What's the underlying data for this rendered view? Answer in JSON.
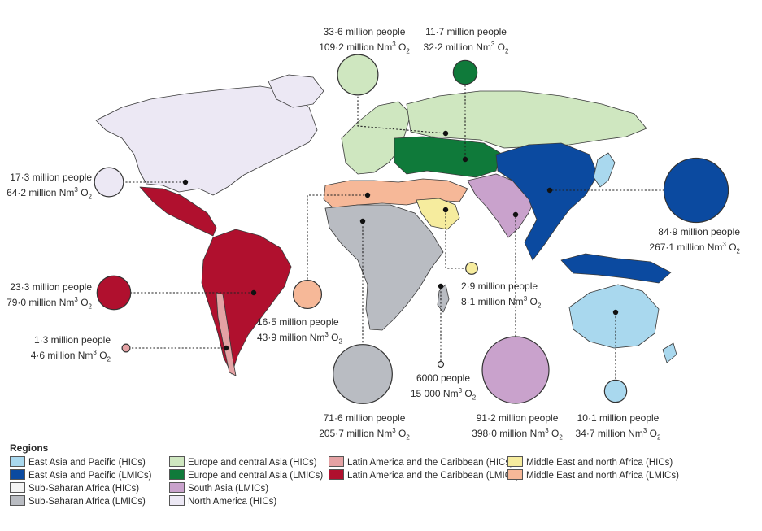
{
  "colors": {
    "eap_hic": "#a9d8ee",
    "eap_lmic": "#0b4aa0",
    "ssa_hic": "#f4f4f4",
    "ssa_lmic": "#b9bcc2",
    "eca_hic": "#cfe7c0",
    "eca_lmic": "#0f7a3a",
    "sa_lmic": "#c9a2cc",
    "na_hic": "#ece8f4",
    "lac_hic": "#e4a2a4",
    "lac_lmic": "#b0102e",
    "mena_hic": "#f6ec9e",
    "mena_lmic": "#f6b898"
  },
  "bubbles": [
    {
      "id": "eca_hic",
      "people": "33·6 million people",
      "oxygen": "109·2 million Nm",
      "unit": "3",
      "o2": "O",
      "sub": "2",
      "people_value": 33.6,
      "oxygen_value": 109.2
    },
    {
      "id": "eca_lmic",
      "people": "11·7 million people",
      "oxygen": "32·2 million Nm",
      "unit": "3",
      "o2": "O",
      "sub": "2",
      "people_value": 11.7,
      "oxygen_value": 32.2
    },
    {
      "id": "na_hic",
      "people": "17·3 million people",
      "oxygen": "64·2 million Nm",
      "unit": "3",
      "o2": "O",
      "sub": "2",
      "people_value": 17.3,
      "oxygen_value": 64.2
    },
    {
      "id": "eap_lmic",
      "people": "84·9 million people",
      "oxygen": "267·1 million Nm",
      "unit": "3",
      "o2": "O",
      "sub": "2",
      "people_value": 84.9,
      "oxygen_value": 267.1
    },
    {
      "id": "lac_lmic",
      "people": "23·3 million people",
      "oxygen": "79·0 million Nm",
      "unit": "3",
      "o2": "O",
      "sub": "2",
      "people_value": 23.3,
      "oxygen_value": 79.0
    },
    {
      "id": "mena_lmic",
      "people": "16·5 million people",
      "oxygen": "43·9 million Nm",
      "unit": "3",
      "o2": "O",
      "sub": "2",
      "people_value": 16.5,
      "oxygen_value": 43.9
    },
    {
      "id": "mena_hic",
      "people": "2·9 million people",
      "oxygen": "8·1 million Nm",
      "unit": "3",
      "o2": "O",
      "sub": "2",
      "people_value": 2.9,
      "oxygen_value": 8.1
    },
    {
      "id": "lac_hic",
      "people": "1·3 million people",
      "oxygen": "4·6 million Nm",
      "unit": "3",
      "o2": "O",
      "sub": "2",
      "people_value": 1.3,
      "oxygen_value": 4.6
    },
    {
      "id": "ssa_hic",
      "people": "6000 people",
      "oxygen": "15 000 Nm",
      "unit": "3",
      "o2": "O",
      "sub": "2",
      "people_value": 0.006,
      "oxygen_value": 0.015
    },
    {
      "id": "ssa_lmic",
      "people": "71·6 million people",
      "oxygen": "205·7 million Nm",
      "unit": "3",
      "o2": "O",
      "sub": "2",
      "people_value": 71.6,
      "oxygen_value": 205.7
    },
    {
      "id": "sa_lmic",
      "people": "91·2 million people",
      "oxygen": "398·0 million Nm",
      "unit": "3",
      "o2": "O",
      "sub": "2",
      "people_value": 91.2,
      "oxygen_value": 398.0
    },
    {
      "id": "eap_hic",
      "people": "10·1 million people",
      "oxygen": "34·7 million Nm",
      "unit": "3",
      "o2": "O",
      "sub": "2",
      "people_value": 10.1,
      "oxygen_value": 34.7
    }
  ],
  "legend": {
    "title": "Regions",
    "items": [
      {
        "key": "eap_hic",
        "label": "East Asia and Pacific (HICs)"
      },
      {
        "key": "eap_lmic",
        "label": "East Asia and Pacific (LMICs)"
      },
      {
        "key": "ssa_hic",
        "label": "Sub-Saharan Africa (HICs)"
      },
      {
        "key": "ssa_lmic",
        "label": "Sub-Saharan Africa (LMICs)"
      },
      {
        "key": "eca_hic",
        "label": "Europe and central Asia (HICs)"
      },
      {
        "key": "eca_lmic",
        "label": "Europe and central Asia (LMICs)"
      },
      {
        "key": "sa_lmic",
        "label": "South Asia (LMICs)"
      },
      {
        "key": "na_hic",
        "label": "North America (HICs)"
      },
      {
        "key": "lac_hic",
        "label": "Latin America and the Caribbean (HICs)"
      },
      {
        "key": "lac_lmic",
        "label": "Latin America and the Caribbean (LMICs)"
      },
      {
        "key": "mena_hic",
        "label": "Middle East and north Africa (HICs)"
      },
      {
        "key": "mena_lmic",
        "label": "Middle East and north Africa (LMICs)"
      }
    ]
  }
}
